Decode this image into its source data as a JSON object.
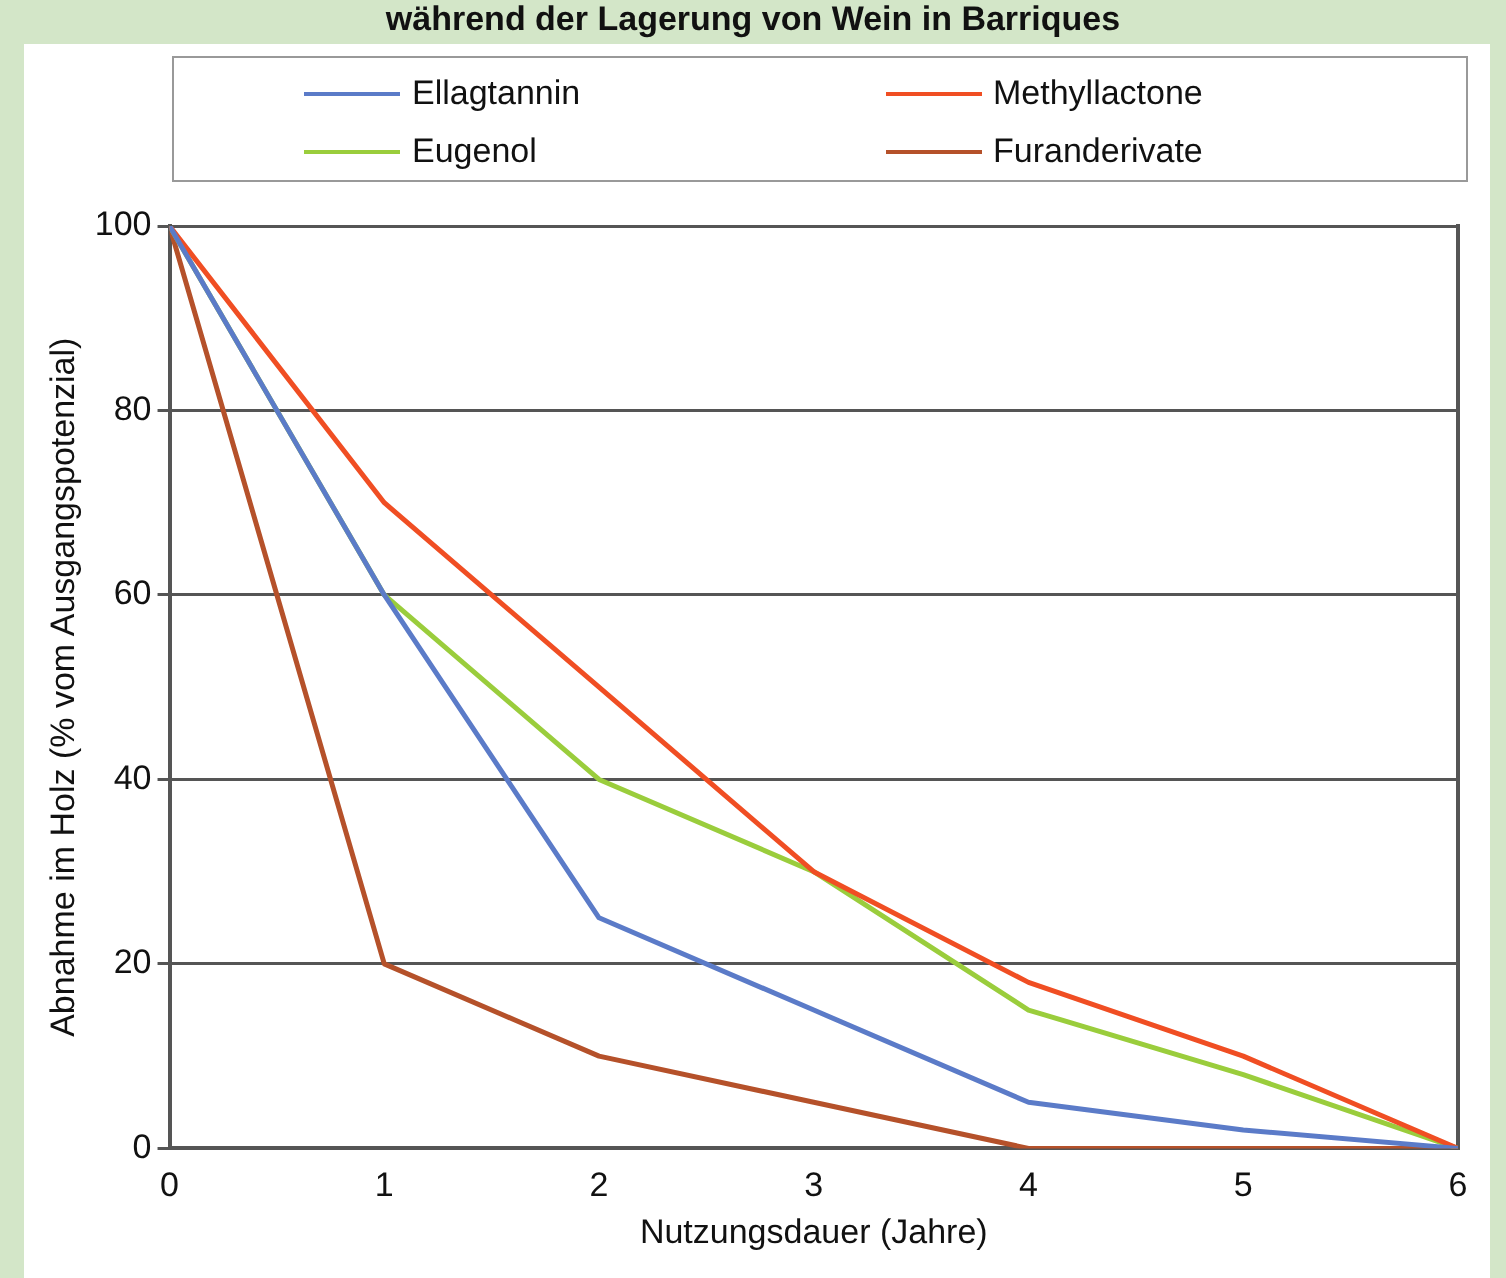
{
  "chart_data": {
    "type": "line",
    "title": "während der Lagerung von Wein in Barriques",
    "xlabel": "Nutzungsdauer (Jahre)",
    "ylabel": "Abnahme im Holz (% vom Ausgangspotenzial)",
    "x": [
      0,
      1,
      2,
      3,
      4,
      5,
      6
    ],
    "series": [
      {
        "name": "Ellagtannin",
        "color": "#5b7bc8",
        "values": [
          100,
          60,
          25,
          15,
          5,
          2,
          0
        ]
      },
      {
        "name": "Methyllactone",
        "color": "#f04e23",
        "values": [
          100,
          70,
          50,
          30,
          18,
          10,
          0
        ]
      },
      {
        "name": "Eugenol",
        "color": "#9acd3c",
        "values": [
          100,
          60,
          40,
          30,
          15,
          8,
          0
        ]
      },
      {
        "name": "Furanderivate",
        "color": "#b5512a",
        "values": [
          100,
          20,
          10,
          5,
          0,
          0,
          0
        ]
      }
    ],
    "xlim": [
      0,
      6
    ],
    "xticks": [
      0,
      1,
      2,
      3,
      4,
      5,
      6
    ],
    "ylim": [
      0,
      100
    ],
    "yticks": [
      0,
      20,
      40,
      60,
      80,
      100
    ],
    "grid": "y",
    "legend": "top",
    "marker": "none",
    "line_style": "solid"
  }
}
